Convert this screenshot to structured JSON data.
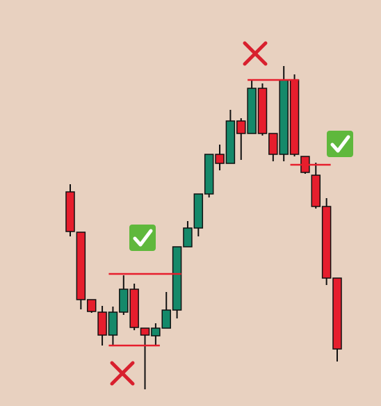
{
  "chart_data": {
    "type": "candlestick",
    "ylim": [
      0,
      584
    ],
    "up_color": "#15896a",
    "down_color": "#e61e2d",
    "level_color": "#e61e2d",
    "series": [
      {
        "open": [
          308,
          250,
          153,
          135,
          102,
          135,
          168,
          112,
          101,
          112,
          138,
          229,
          256,
          305,
          362,
          349,
          410,
          392,
          457,
          392,
          362,
          469,
          359,
          332,
          287,
          184
        ],
        "high": [
          319,
          250,
          153,
          144,
          143,
          188,
          176,
          112,
          119,
          164,
          229,
          266,
          305,
          362,
          376,
          426,
          414,
          469,
          464,
          392,
          489,
          477,
          359,
          350,
          299,
          184
        ],
        "low": [
          244,
          139,
          134,
          87,
          87,
          131,
          109,
          24,
          87,
          112,
          126,
          229,
          244,
          300,
          339,
          349,
          354,
          392,
          389,
          352,
          352,
          359,
          334,
          284,
          174,
          64
        ],
        "close": [
          251,
          153,
          136,
          102,
          135,
          168,
          113,
          102,
          112,
          138,
          229,
          256,
          305,
          362,
          349,
          410,
          392,
          457,
          392,
          362,
          469,
          362,
          336,
          287,
          184,
          82
        ]
      }
    ],
    "levels": [
      {
        "value": 190,
        "start": 4,
        "end": 10
      },
      {
        "value": 87,
        "start": 4,
        "end": 8
      },
      {
        "value": 469,
        "start": 17,
        "end": 21
      },
      {
        "value": 347,
        "start": 21,
        "end": 24
      }
    ]
  }
}
